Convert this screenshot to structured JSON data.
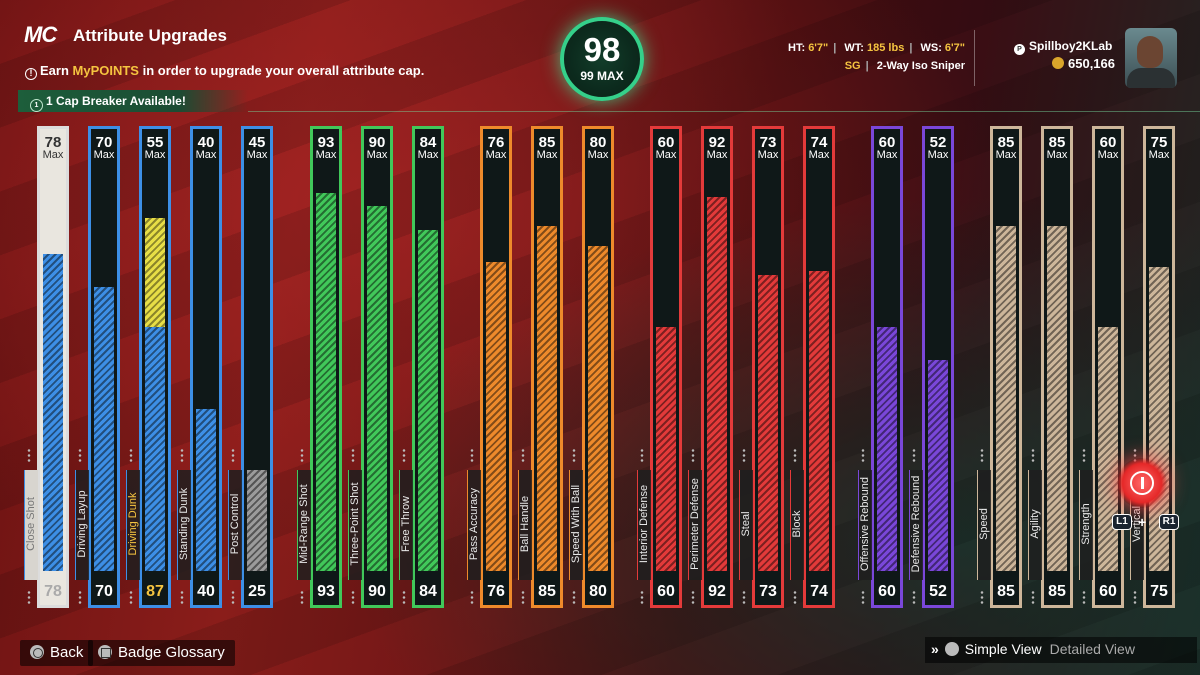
{
  "header": {
    "logo": "MC",
    "title": "Attribute Upgrades",
    "info_prefix": "Earn ",
    "info_highlight": "MyPOINTS",
    "info_suffix": " in order to upgrade your overall attribute cap.",
    "cap_breaker": "1 Cap Breaker Available!"
  },
  "overall": {
    "value": "98",
    "max": "99 MAX"
  },
  "player": {
    "ht_label": "HT:",
    "ht": "6'7\"",
    "wt_label": "WT:",
    "wt": "185 lbs",
    "ws_label": "WS:",
    "ws": "6'7\"",
    "position": "SG",
    "archetype": "2-Way Iso Sniper",
    "username": "Spillboy2KLab",
    "vc": "650,166"
  },
  "max_label": "Max",
  "attributes": [
    {
      "name": "Close Shot",
      "cap": "78",
      "value": "78",
      "fill_pct": 0.78,
      "group": "blue",
      "selected": true
    },
    {
      "name": "Driving Layup",
      "cap": "70",
      "value": "70",
      "fill_pct": 0.7,
      "group": "blue"
    },
    {
      "name": "Driving Dunk",
      "cap": "55",
      "value": "87",
      "fill_pct": 0.6,
      "boost_pct": 0.87,
      "group": "blue",
      "value_color": "#f5c440"
    },
    {
      "name": "Standing Dunk",
      "cap": "40",
      "value": "40",
      "fill_pct": 0.4,
      "group": "blue"
    },
    {
      "name": "Post Control",
      "cap": "45",
      "value": "25",
      "fill_pct": 0.25,
      "group": "blue",
      "value_color": "#ffffff",
      "fill_color": "#9b9b9b"
    },
    {
      "name": "Mid-Range Shot",
      "cap": "93",
      "value": "93",
      "fill_pct": 0.93,
      "group": "green"
    },
    {
      "name": "Three-Point Shot",
      "cap": "90",
      "value": "90",
      "fill_pct": 0.9,
      "group": "green"
    },
    {
      "name": "Free Throw",
      "cap": "84",
      "value": "84",
      "fill_pct": 0.84,
      "group": "green"
    },
    {
      "name": "Pass Accuracy",
      "cap": "76",
      "value": "76",
      "fill_pct": 0.76,
      "group": "orange"
    },
    {
      "name": "Ball Handle",
      "cap": "85",
      "value": "85",
      "fill_pct": 0.85,
      "group": "orange"
    },
    {
      "name": "Speed With Ball",
      "cap": "80",
      "value": "80",
      "fill_pct": 0.8,
      "group": "orange"
    },
    {
      "name": "Interior Defense",
      "cap": "60",
      "value": "60",
      "fill_pct": 0.6,
      "group": "red"
    },
    {
      "name": "Perimeter Defense",
      "cap": "92",
      "value": "92",
      "fill_pct": 0.92,
      "group": "red"
    },
    {
      "name": "Steal",
      "cap": "73",
      "value": "73",
      "fill_pct": 0.73,
      "group": "red"
    },
    {
      "name": "Block",
      "cap": "74",
      "value": "74",
      "fill_pct": 0.74,
      "group": "red"
    },
    {
      "name": "Offensive Rebound",
      "cap": "60",
      "value": "60",
      "fill_pct": 0.6,
      "group": "purple"
    },
    {
      "name": "Defensive Rebound",
      "cap": "52",
      "value": "52",
      "fill_pct": 0.52,
      "group": "purple"
    },
    {
      "name": "Speed",
      "cap": "85",
      "value": "85",
      "fill_pct": 0.85,
      "group": "tan"
    },
    {
      "name": "Agility",
      "cap": "85",
      "value": "85",
      "fill_pct": 0.85,
      "group": "tan"
    },
    {
      "name": "Strength",
      "cap": "60",
      "value": "60",
      "fill_pct": 0.6,
      "group": "tan"
    },
    {
      "name": "Vertical",
      "cap": "75",
      "value": "75",
      "fill_pct": 0.75,
      "group": "tan"
    }
  ],
  "colors": {
    "blue": "#3d8fe6",
    "green": "#41c85a",
    "orange": "#ee8a2b",
    "red": "#e33a3a",
    "purple": "#7a47d9",
    "tan": "#cdb69a",
    "boost": "#e7de46",
    "accent": "#35d08a",
    "highlight": "#f5c440"
  },
  "controls": {
    "l1": "L1",
    "plus": "+",
    "r1": "R1"
  },
  "footer": {
    "back": "Back",
    "glossary": "Badge Glossary",
    "simple_view": "Simple View",
    "detailed_view": "Detailed View"
  }
}
